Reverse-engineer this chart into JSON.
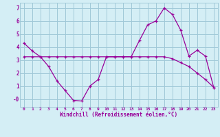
{
  "xlabel": "Windchill (Refroidissement éolien,°C)",
  "bg_color": "#d4eef5",
  "grid_color": "#a0c8d8",
  "line_color": "#990099",
  "xlim": [
    -0.5,
    23.5
  ],
  "ylim": [
    -0.6,
    7.4
  ],
  "xticks": [
    0,
    1,
    2,
    3,
    4,
    5,
    6,
    7,
    8,
    9,
    10,
    11,
    12,
    13,
    14,
    15,
    16,
    17,
    18,
    19,
    20,
    21,
    22,
    23
  ],
  "yticks": [
    0,
    1,
    2,
    3,
    4,
    5,
    6,
    7
  ],
  "ytick_labels": [
    "-0",
    "1",
    "2",
    "3",
    "4",
    "5",
    "6",
    "7"
  ],
  "line1_x": [
    0,
    1,
    2,
    3,
    4,
    5,
    6,
    7,
    8,
    9,
    10,
    11,
    12,
    13,
    14,
    15,
    16,
    17,
    18,
    19,
    20,
    21,
    22,
    23
  ],
  "line1_y": [
    4.3,
    3.7,
    3.25,
    2.5,
    1.4,
    0.65,
    -0.1,
    -0.15,
    1.0,
    1.5,
    3.25,
    3.25,
    3.25,
    3.25,
    4.5,
    5.7,
    6.0,
    7.0,
    6.5,
    5.3,
    3.3,
    3.75,
    3.3,
    0.9
  ],
  "line2_x": [
    0,
    1,
    2,
    3,
    4,
    5,
    6,
    7,
    8,
    9,
    10,
    11,
    12,
    13,
    14,
    15,
    16,
    17,
    18,
    19,
    20,
    21,
    22,
    23
  ],
  "line2_y": [
    3.25,
    3.25,
    3.25,
    3.25,
    3.25,
    3.25,
    3.25,
    3.25,
    3.25,
    3.25,
    3.25,
    3.25,
    3.25,
    3.25,
    3.25,
    3.25,
    3.25,
    3.25,
    3.1,
    2.8,
    2.5,
    2.0,
    1.5,
    0.9
  ]
}
